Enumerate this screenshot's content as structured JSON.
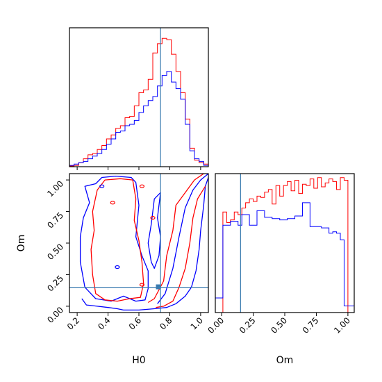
{
  "chart_data": {
    "type": "corner",
    "colors": {
      "series_a": "#ff0000",
      "series_b": "#0000ff",
      "truth": "#3a7bb0"
    },
    "parameters": [
      "H0",
      "Om"
    ],
    "truths": {
      "H0": 0.74,
      "Om": 0.15
    },
    "axes": {
      "H0": {
        "range": [
          0.15,
          1.05
        ],
        "ticks": [
          "0.2",
          "0.4",
          "0.6",
          "0.8",
          "1.0"
        ],
        "tick_values": [
          0.2,
          0.4,
          0.6,
          0.8,
          1.0
        ]
      },
      "Om": {
        "range": [
          -0.05,
          1.05
        ],
        "ticks": [
          "0.00",
          "0.25",
          "0.50",
          "0.75",
          "1.00"
        ],
        "tick_values": [
          0.0,
          0.25,
          0.5,
          0.75,
          1.0
        ]
      }
    },
    "panels": [
      {
        "name": "H0-marginal",
        "type": "histogram",
        "x": "H0",
        "bin_edges": [
          0.15,
          0.18,
          0.21,
          0.24,
          0.27,
          0.3,
          0.33,
          0.36,
          0.39,
          0.42,
          0.45,
          0.48,
          0.51,
          0.54,
          0.57,
          0.6,
          0.63,
          0.66,
          0.69,
          0.72,
          0.75,
          0.78,
          0.81,
          0.84,
          0.87,
          0.9,
          0.93,
          0.96,
          0.99,
          1.02,
          1.05
        ],
        "series": [
          {
            "name": "",
            "color": "#ff0000",
            "values": [
              0.005,
              0.01,
              0.03,
              0.06,
              0.09,
              0.1,
              0.13,
              0.16,
              0.21,
              0.24,
              0.29,
              0.31,
              0.37,
              0.38,
              0.46,
              0.56,
              0.58,
              0.66,
              0.86,
              0.93,
              0.97,
              0.96,
              0.85,
              0.72,
              0.56,
              0.36,
              0.14,
              0.05,
              0.03,
              0.02
            ]
          },
          {
            "name": "",
            "color": "#0000ff",
            "values": [
              0.01,
              0.02,
              0.03,
              0.04,
              0.06,
              0.08,
              0.1,
              0.13,
              0.17,
              0.21,
              0.26,
              0.27,
              0.31,
              0.32,
              0.35,
              0.41,
              0.46,
              0.5,
              0.53,
              0.61,
              0.69,
              0.72,
              0.64,
              0.59,
              0.51,
              0.32,
              0.12,
              0.06,
              0.04,
              0.01
            ]
          }
        ]
      },
      {
        "name": "Om-marginal",
        "type": "histogram",
        "x": "Om",
        "bin_edges": [
          -0.05,
          -0.02,
          0.01,
          0.04,
          0.07,
          0.1,
          0.13,
          0.16,
          0.19,
          0.22,
          0.25,
          0.28,
          0.31,
          0.34,
          0.37,
          0.4,
          0.43,
          0.46,
          0.49,
          0.52,
          0.55,
          0.58,
          0.61,
          0.64,
          0.67,
          0.7,
          0.73,
          0.76,
          0.79,
          0.82,
          0.85,
          0.88,
          0.91,
          0.94,
          0.97,
          1.0,
          1.03,
          1.05
        ],
        "series": [
          {
            "name": "",
            "color": "#ff0000",
            "values": [
              0,
              0,
              0.76,
              0.68,
              0.7,
              0.76,
              0.74,
              0.79,
              0.83,
              0.86,
              0.84,
              0.88,
              0.87,
              0.91,
              0.93,
              0.82,
              0.96,
              0.88,
              0.96,
              0.99,
              0.92,
              1.0,
              0.9,
              0.97,
              0.96,
              1.01,
              0.94,
              1.02,
              0.95,
              0.98,
              1.01,
              0.99,
              0.93,
              1.02,
              1.0,
              0,
              0
            ]
          },
          {
            "name": "",
            "color": "#0000ff",
            "values": [
              0.11,
              0.11,
              0.66,
              0.66,
              0.69,
              0.69,
              0.66,
              0.74,
              0.74,
              0.66,
              0.66,
              0.77,
              0.77,
              0.72,
              0.72,
              0.71,
              0.71,
              0.7,
              0.7,
              0.71,
              0.71,
              0.73,
              0.73,
              0.83,
              0.83,
              0.65,
              0.65,
              0.65,
              0.64,
              0.64,
              0.6,
              0.61,
              0.6,
              0.55,
              0.05,
              0.05,
              0.05
            ]
          }
        ]
      },
      {
        "name": "H0-Om-joint",
        "type": "contour",
        "x": "H0",
        "y": "Om",
        "series": [
          {
            "name": "",
            "color": "#ff0000",
            "levels": 2
          },
          {
            "name": "",
            "color": "#0000ff",
            "levels": 2
          }
        ]
      }
    ],
    "grid": false,
    "legend": "none"
  },
  "labels": {
    "h0_axis": "H0",
    "om_axis": "Om",
    "om_side_axis": "Om"
  }
}
